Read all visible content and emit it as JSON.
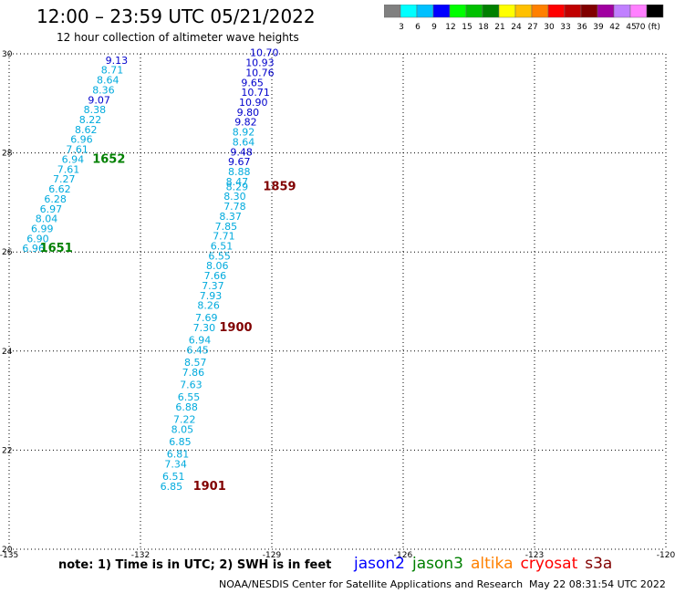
{
  "header": {
    "title": "12:00 – 23:59 UTC 05/21/2022",
    "subtitle": "12 hour collection of altimeter wave heights"
  },
  "colorbar": {
    "colors": [
      "#808080",
      "#00ffff",
      "#00c0ff",
      "#0000ff",
      "#00ff00",
      "#00c000",
      "#008000",
      "#ffff00",
      "#ffc000",
      "#ff8000",
      "#ff0000",
      "#c00000",
      "#800000",
      "#a000a0",
      "#c080ff",
      "#ff80ff",
      "#000000"
    ],
    "labels": [
      "3",
      "6",
      "9",
      "12",
      "15",
      "18",
      "21",
      "24",
      "27",
      "30",
      "33",
      "36",
      "39",
      "42",
      "45",
      "70 (ft)"
    ]
  },
  "axes": {
    "lon_ticks": [
      "-135",
      "-132",
      "-129",
      "-126",
      "-123",
      "-120"
    ],
    "lat_ticks": [
      "30",
      "28",
      "26",
      "24",
      "22",
      "20"
    ],
    "lon_range": [
      -135,
      -120
    ],
    "lat_range": [
      20,
      30
    ]
  },
  "tracks": [
    {
      "points": [
        {
          "lat": 29.8,
          "lon": -132.8,
          "v": "9.13",
          "color": "#0000cc"
        },
        {
          "lat": 29.6,
          "lon": -132.9,
          "v": "8.71",
          "color": "#00aadd"
        },
        {
          "lat": 29.4,
          "lon": -133.0,
          "v": "8.64",
          "color": "#00aadd"
        },
        {
          "lat": 29.2,
          "lon": -133.1,
          "v": "8.36",
          "color": "#00aadd"
        },
        {
          "lat": 29.0,
          "lon": -133.2,
          "v": "9.07",
          "color": "#0000cc"
        },
        {
          "lat": 28.8,
          "lon": -133.3,
          "v": "8.38",
          "color": "#00aadd"
        },
        {
          "lat": 28.6,
          "lon": -133.4,
          "v": "8.22",
          "color": "#00aadd"
        },
        {
          "lat": 28.4,
          "lon": -133.5,
          "v": "8.62",
          "color": "#00aadd"
        },
        {
          "lat": 28.2,
          "lon": -133.6,
          "v": "6.96",
          "color": "#00aadd"
        },
        {
          "lat": 28.0,
          "lon": -133.7,
          "v": "7.61",
          "color": "#00aadd"
        },
        {
          "lat": 27.8,
          "lon": -133.8,
          "v": "6.94",
          "color": "#00aadd"
        },
        {
          "lat": 27.6,
          "lon": -133.9,
          "v": "7.61",
          "color": "#00aadd"
        },
        {
          "lat": 27.4,
          "lon": -134.0,
          "v": "7.27",
          "color": "#00aadd"
        },
        {
          "lat": 27.2,
          "lon": -134.1,
          "v": "6.62",
          "color": "#00aadd"
        },
        {
          "lat": 27.0,
          "lon": -134.2,
          "v": "6.28",
          "color": "#00aadd"
        },
        {
          "lat": 26.8,
          "lon": -134.3,
          "v": "6.97",
          "color": "#00aadd"
        },
        {
          "lat": 26.6,
          "lon": -134.4,
          "v": "8.04",
          "color": "#00aadd"
        },
        {
          "lat": 26.4,
          "lon": -134.5,
          "v": "6.99",
          "color": "#00aadd"
        },
        {
          "lat": 26.2,
          "lon": -134.6,
          "v": "6.90",
          "color": "#00aadd"
        },
        {
          "lat": 26.0,
          "lon": -134.7,
          "v": "6.96",
          "color": "#00aadd"
        }
      ],
      "labels": [
        {
          "lat": 27.8,
          "lon": -133.1,
          "text": "1652",
          "color": "#008000"
        },
        {
          "lat": 26.0,
          "lon": -134.3,
          "text": "1651",
          "color": "#008000"
        }
      ]
    },
    {
      "points": [
        {
          "lat": 29.95,
          "lon": -129.5,
          "v": "10.70",
          "color": "#0000cc"
        },
        {
          "lat": 29.75,
          "lon": -129.6,
          "v": "10.93",
          "color": "#0000cc"
        },
        {
          "lat": 29.55,
          "lon": -129.6,
          "v": "10.76",
          "color": "#0000cc"
        },
        {
          "lat": 29.35,
          "lon": -129.7,
          "v": "9.65",
          "color": "#0000cc"
        },
        {
          "lat": 29.15,
          "lon": -129.7,
          "v": "10.71",
          "color": "#0000cc"
        },
        {
          "lat": 28.95,
          "lon": -129.75,
          "v": "10.90",
          "color": "#0000cc"
        },
        {
          "lat": 28.75,
          "lon": -129.8,
          "v": "9.80",
          "color": "#0000cc"
        },
        {
          "lat": 28.55,
          "lon": -129.85,
          "v": "9.82",
          "color": "#0000cc"
        },
        {
          "lat": 28.35,
          "lon": -129.9,
          "v": "8.92",
          "color": "#00aadd"
        },
        {
          "lat": 28.15,
          "lon": -129.9,
          "v": "8.64",
          "color": "#00aadd"
        },
        {
          "lat": 27.95,
          "lon": -129.95,
          "v": "9.48",
          "color": "#0000cc"
        },
        {
          "lat": 27.75,
          "lon": -130.0,
          "v": "9.67",
          "color": "#0000cc"
        },
        {
          "lat": 27.55,
          "lon": -130.0,
          "v": "8.88",
          "color": "#00aadd"
        },
        {
          "lat": 27.35,
          "lon": -130.05,
          "v": "8.47",
          "color": "#00aadd"
        },
        {
          "lat": 27.25,
          "lon": -130.05,
          "v": "8.29",
          "color": "#00aadd"
        },
        {
          "lat": 27.05,
          "lon": -130.1,
          "v": "8.30",
          "color": "#00aadd"
        },
        {
          "lat": 26.85,
          "lon": -130.1,
          "v": "7.78",
          "color": "#00aadd"
        },
        {
          "lat": 26.65,
          "lon": -130.2,
          "v": "8.37",
          "color": "#00aadd"
        },
        {
          "lat": 26.45,
          "lon": -130.3,
          "v": "7.85",
          "color": "#00aadd"
        },
        {
          "lat": 26.25,
          "lon": -130.35,
          "v": "7.71",
          "color": "#00aadd"
        },
        {
          "lat": 26.05,
          "lon": -130.4,
          "v": "6.51",
          "color": "#00aadd"
        },
        {
          "lat": 25.85,
          "lon": -130.45,
          "v": "6.55",
          "color": "#00aadd"
        },
        {
          "lat": 25.65,
          "lon": -130.5,
          "v": "8.06",
          "color": "#00aadd"
        },
        {
          "lat": 25.45,
          "lon": -130.55,
          "v": "7.66",
          "color": "#00aadd"
        },
        {
          "lat": 25.25,
          "lon": -130.6,
          "v": "7.37",
          "color": "#00aadd"
        },
        {
          "lat": 25.05,
          "lon": -130.65,
          "v": "7.93",
          "color": "#00aadd"
        },
        {
          "lat": 24.85,
          "lon": -130.7,
          "v": "8.26",
          "color": "#00aadd"
        },
        {
          "lat": 24.6,
          "lon": -130.75,
          "v": "7.69",
          "color": "#00aadd"
        },
        {
          "lat": 24.4,
          "lon": -130.8,
          "v": "7.30",
          "color": "#00aadd"
        },
        {
          "lat": 24.15,
          "lon": -130.9,
          "v": "6.94",
          "color": "#00aadd"
        },
        {
          "lat": 23.95,
          "lon": -130.95,
          "v": "6.45",
          "color": "#00aadd"
        },
        {
          "lat": 23.7,
          "lon": -131.0,
          "v": "8.57",
          "color": "#00aadd"
        },
        {
          "lat": 23.5,
          "lon": -131.05,
          "v": "7.86",
          "color": "#00aadd"
        },
        {
          "lat": 23.25,
          "lon": -131.1,
          "v": "7.63",
          "color": "#00aadd"
        },
        {
          "lat": 23.0,
          "lon": -131.15,
          "v": "6.55",
          "color": "#00aadd"
        },
        {
          "lat": 22.8,
          "lon": -131.2,
          "v": "6.88",
          "color": "#00aadd"
        },
        {
          "lat": 22.55,
          "lon": -131.25,
          "v": "7.22",
          "color": "#00aadd"
        },
        {
          "lat": 22.35,
          "lon": -131.3,
          "v": "8.05",
          "color": "#00aadd"
        },
        {
          "lat": 22.1,
          "lon": -131.35,
          "v": "6.85",
          "color": "#00aadd"
        },
        {
          "lat": 21.85,
          "lon": -131.4,
          "v": "6.81",
          "color": "#00aadd"
        },
        {
          "lat": 21.65,
          "lon": -131.45,
          "v": "7.34",
          "color": "#00aadd"
        },
        {
          "lat": 21.4,
          "lon": -131.5,
          "v": "6.51",
          "color": "#00aadd"
        },
        {
          "lat": 21.2,
          "lon": -131.55,
          "v": "6.85",
          "color": "#00aadd"
        }
      ],
      "labels": [
        {
          "lat": 27.25,
          "lon": -129.2,
          "text": "1859",
          "color": "#800000"
        },
        {
          "lat": 24.4,
          "lon": -130.2,
          "text": "1900",
          "color": "#800000"
        },
        {
          "lat": 21.2,
          "lon": -130.8,
          "text": "1901",
          "color": "#800000"
        }
      ]
    }
  ],
  "footer": {
    "note": "note:  1) Time is in UTC;  2) SWH is in feet",
    "credit": "NOAA/NESDIS Center for Satellite Applications and Research",
    "timestamp": "May 22 08:31:54 UTC 2022",
    "satellites": [
      {
        "name": "jason2",
        "color": "#0000ff"
      },
      {
        "name": "jason3",
        "color": "#008000"
      },
      {
        "name": "altika",
        "color": "#ff8000"
      },
      {
        "name": "cryosat",
        "color": "#ff0000"
      },
      {
        "name": "s3a",
        "color": "#800000"
      }
    ]
  }
}
